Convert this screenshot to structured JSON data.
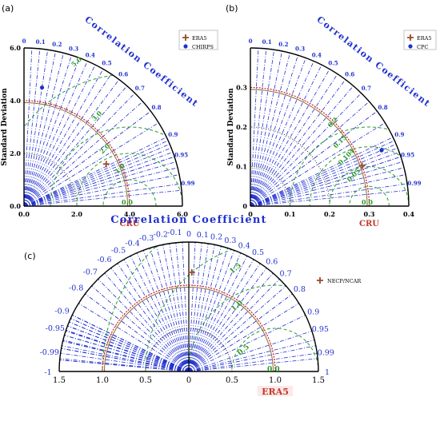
{
  "colors": {
    "ref_arc": "#cc2222",
    "ratio_ref_arc": "#8b6b3a",
    "rms": "#2a9a2a",
    "std_dotted": "#333333",
    "corr_lines": "#1f2fd0",
    "ref_label": "#c0392b",
    "series_era5": "#9a4a2a",
    "series_blue": "#1f2fd0",
    "axes": "#000000"
  },
  "chart_data": [
    {
      "type": "taylor",
      "panel_label": "(a)",
      "domain": "quarter",
      "corr_title": "Correlation Coefficient",
      "ylabel": "Standard Deviation",
      "reference_label": "CRU",
      "reference_std": 4.0,
      "std_max": 6.0,
      "x_ticks": [
        "0.0",
        "2.0",
        "4.0",
        "6.0"
      ],
      "y_ticks": [
        "0.0",
        "2.0",
        "4.0",
        "6.0"
      ],
      "corr_ticks": [
        "0",
        "0.1",
        "0.2",
        "0.3",
        "0.4",
        "0.5",
        "0.6",
        "0.7",
        "0.8",
        "0.9",
        "0.95",
        "0.99"
      ],
      "rms_labels": [
        "2.0",
        "1.0",
        "3.0",
        "5.0",
        "0.0"
      ],
      "legend": [
        "ERA5",
        "CHIRPS"
      ],
      "points": [
        {
          "name": "ERA5",
          "std": 3.5,
          "corr": 0.89,
          "marker": "plus"
        },
        {
          "name": "CHIRPS",
          "std": 4.55,
          "corr": 0.15,
          "marker": "dot"
        }
      ]
    },
    {
      "type": "taylor",
      "panel_label": "(b)",
      "domain": "quarter",
      "corr_title": "Correlation Coefficient",
      "ylabel": "Standard Deviation",
      "reference_label": "CRU",
      "reference_std": 0.3,
      "std_max": 0.4,
      "x_ticks": [
        "0",
        "0.1",
        "0.2",
        "0.3",
        "0.4"
      ],
      "y_ticks": [
        "0",
        "0.1",
        "0.2",
        "0.3"
      ],
      "corr_ticks": [
        "0",
        "0.1",
        "0.2",
        "0.3",
        "0.4",
        "0.5",
        "0.6",
        "0.7",
        "0.8",
        "0.9",
        "0.95",
        "0.99"
      ],
      "rms_labels": [
        "0.2",
        "0.15",
        "0.104",
        "0.05",
        "0.0"
      ],
      "legend": [
        "ERA5",
        "CPC"
      ],
      "points": [
        {
          "name": "ERA5",
          "std": 0.3,
          "corr": 0.94,
          "marker": "plus"
        },
        {
          "name": "CPC",
          "std": 0.36,
          "corr": 0.92,
          "marker": "dot"
        }
      ]
    },
    {
      "type": "taylor",
      "panel_label": "(c)",
      "domain": "half",
      "corr_title": "Correlation Coefficient",
      "reference_label": "ERA5",
      "reference_std": 1.0,
      "std_max": 1.5,
      "x_ticks": [
        "1.5",
        "1.0",
        "0.5",
        "0",
        "0.5",
        "1.0",
        "1.5"
      ],
      "corr_ticks_pos": [
        "0",
        "0.1",
        "0.2",
        "0.3",
        "0.4",
        "0.5",
        "0.6",
        "0.7",
        "0.8",
        "0.9",
        "0.95",
        "0.99",
        "1"
      ],
      "corr_ticks_neg": [
        "-0.1",
        "-0.2",
        "-0.3",
        "-0.4",
        "-0.5",
        "-0.6",
        "-0.7",
        "-0.8",
        "-0.9",
        "-0.95",
        "-0.99",
        "-1"
      ],
      "rms_labels": [
        "1.5",
        "1.0",
        "0.5",
        "0.0"
      ],
      "legend": [
        "NECP/NCAR"
      ],
      "points": [
        {
          "name": "NECP/NCAR",
          "std": 1.15,
          "corr": 0.03,
          "marker": "plus"
        }
      ]
    }
  ]
}
